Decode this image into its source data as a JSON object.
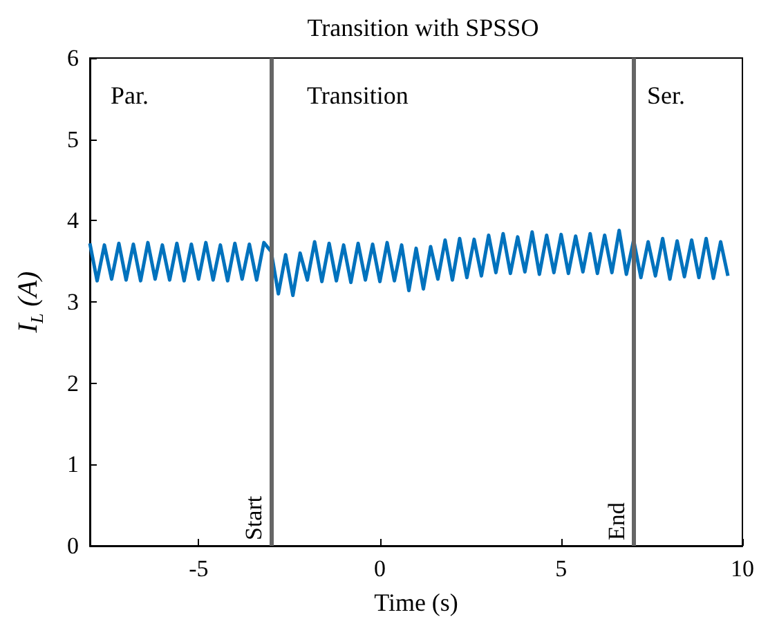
{
  "chart_data": {
    "type": "line",
    "title": "Transition with SPSSO",
    "xlabel": "Time (s)",
    "ylabel": "I$_{L}$ (A)",
    "x": [
      -8,
      -7.8,
      -7.6,
      -7.4,
      -7.2,
      -7,
      -6.8,
      -6.6,
      -6.4,
      -6.2,
      -6,
      -5.8,
      -5.6,
      -5.4,
      -5.2,
      -5,
      -4.8,
      -4.6,
      -4.4,
      -4.2,
      -4,
      -3.8,
      -3.6,
      -3.4,
      -3.2,
      -3,
      -2.8,
      -2.6,
      -2.4,
      -2.2,
      -2,
      -1.8,
      -1.6,
      -1.4,
      -1.2,
      -1,
      -0.8,
      -0.6,
      -0.4,
      -0.2,
      0,
      0.2,
      0.4,
      0.6,
      0.8,
      1,
      1.2,
      1.4,
      1.6,
      1.8,
      2,
      2.2,
      2.4,
      2.6,
      2.8,
      3,
      3.2,
      3.4,
      3.6,
      3.8,
      4,
      4.2,
      4.4,
      4.6,
      4.8,
      5,
      5.2,
      5.4,
      5.6,
      5.8,
      6,
      6.2,
      6.4,
      6.6,
      6.8,
      7,
      7.2,
      7.4,
      7.6,
      7.8,
      8,
      8.2,
      8.4,
      8.6,
      8.8,
      9,
      9.2,
      9.4,
      9.6
    ],
    "series": [
      {
        "color": "#0072bd",
        "values": [
          3.72,
          3.26,
          3.7,
          3.28,
          3.72,
          3.27,
          3.71,
          3.26,
          3.73,
          3.28,
          3.7,
          3.27,
          3.72,
          3.26,
          3.71,
          3.28,
          3.73,
          3.27,
          3.7,
          3.26,
          3.72,
          3.28,
          3.71,
          3.27,
          3.73,
          3.62,
          3.1,
          3.58,
          3.08,
          3.6,
          3.27,
          3.74,
          3.25,
          3.72,
          3.26,
          3.7,
          3.24,
          3.72,
          3.27,
          3.71,
          3.25,
          3.73,
          3.26,
          3.7,
          3.14,
          3.66,
          3.16,
          3.68,
          3.28,
          3.76,
          3.27,
          3.78,
          3.3,
          3.77,
          3.32,
          3.82,
          3.36,
          3.84,
          3.35,
          3.8,
          3.37,
          3.86,
          3.34,
          3.82,
          3.36,
          3.83,
          3.35,
          3.81,
          3.37,
          3.84,
          3.35,
          3.82,
          3.36,
          3.88,
          3.34,
          3.76,
          3.3,
          3.74,
          3.32,
          3.78,
          3.28,
          3.75,
          3.31,
          3.76,
          3.3,
          3.78,
          3.29,
          3.74,
          3.32
        ]
      }
    ],
    "xlim": [
      -8,
      10
    ],
    "xticks": [
      -5,
      0,
      5,
      10
    ],
    "ylim": [
      0,
      6
    ],
    "yticks": [
      0,
      1,
      2,
      3,
      4,
      5,
      6
    ],
    "ref_lines": [
      {
        "axis": "x",
        "value": -3,
        "label": "Start",
        "color": "#666666"
      },
      {
        "axis": "x",
        "value": 7,
        "label": "End",
        "color": "#666666"
      }
    ],
    "annotations": [
      "Par.",
      "Transition",
      "Ser."
    ],
    "grid": false,
    "marker": "none",
    "line_style": "solid"
  }
}
